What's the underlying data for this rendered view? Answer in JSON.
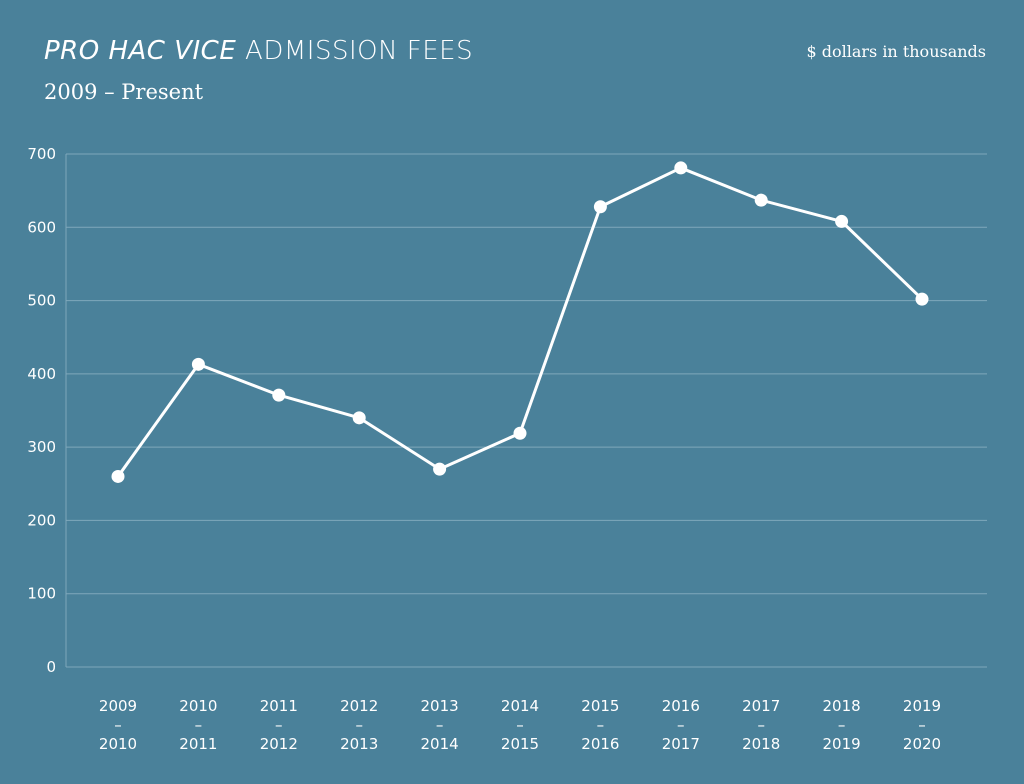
{
  "chart_data": {
    "type": "line",
    "title_italic": "PRO HAC VICE",
    "title_rest": "ADMISSION FEES",
    "subtitle": "2009 – Present",
    "units_note": "$ dollars in thousands",
    "xlabel": "",
    "ylabel": "",
    "ylim": [
      0,
      700
    ],
    "yticks": [
      0,
      100,
      200,
      300,
      400,
      500,
      600,
      700
    ],
    "grid": true,
    "categories": [
      "2009–2010",
      "2010–2011",
      "2011–2012",
      "2012–2013",
      "2013–2014",
      "2014–2015",
      "2015–2016",
      "2016–2017",
      "2017–2018",
      "2018–2019",
      "2019–2020"
    ],
    "values": [
      260,
      413,
      371,
      340,
      270,
      319,
      628,
      681,
      637,
      608,
      502
    ],
    "colors": {
      "background": "#4a819a",
      "line": "#ffffff",
      "grid": "#7fa8bb"
    }
  }
}
